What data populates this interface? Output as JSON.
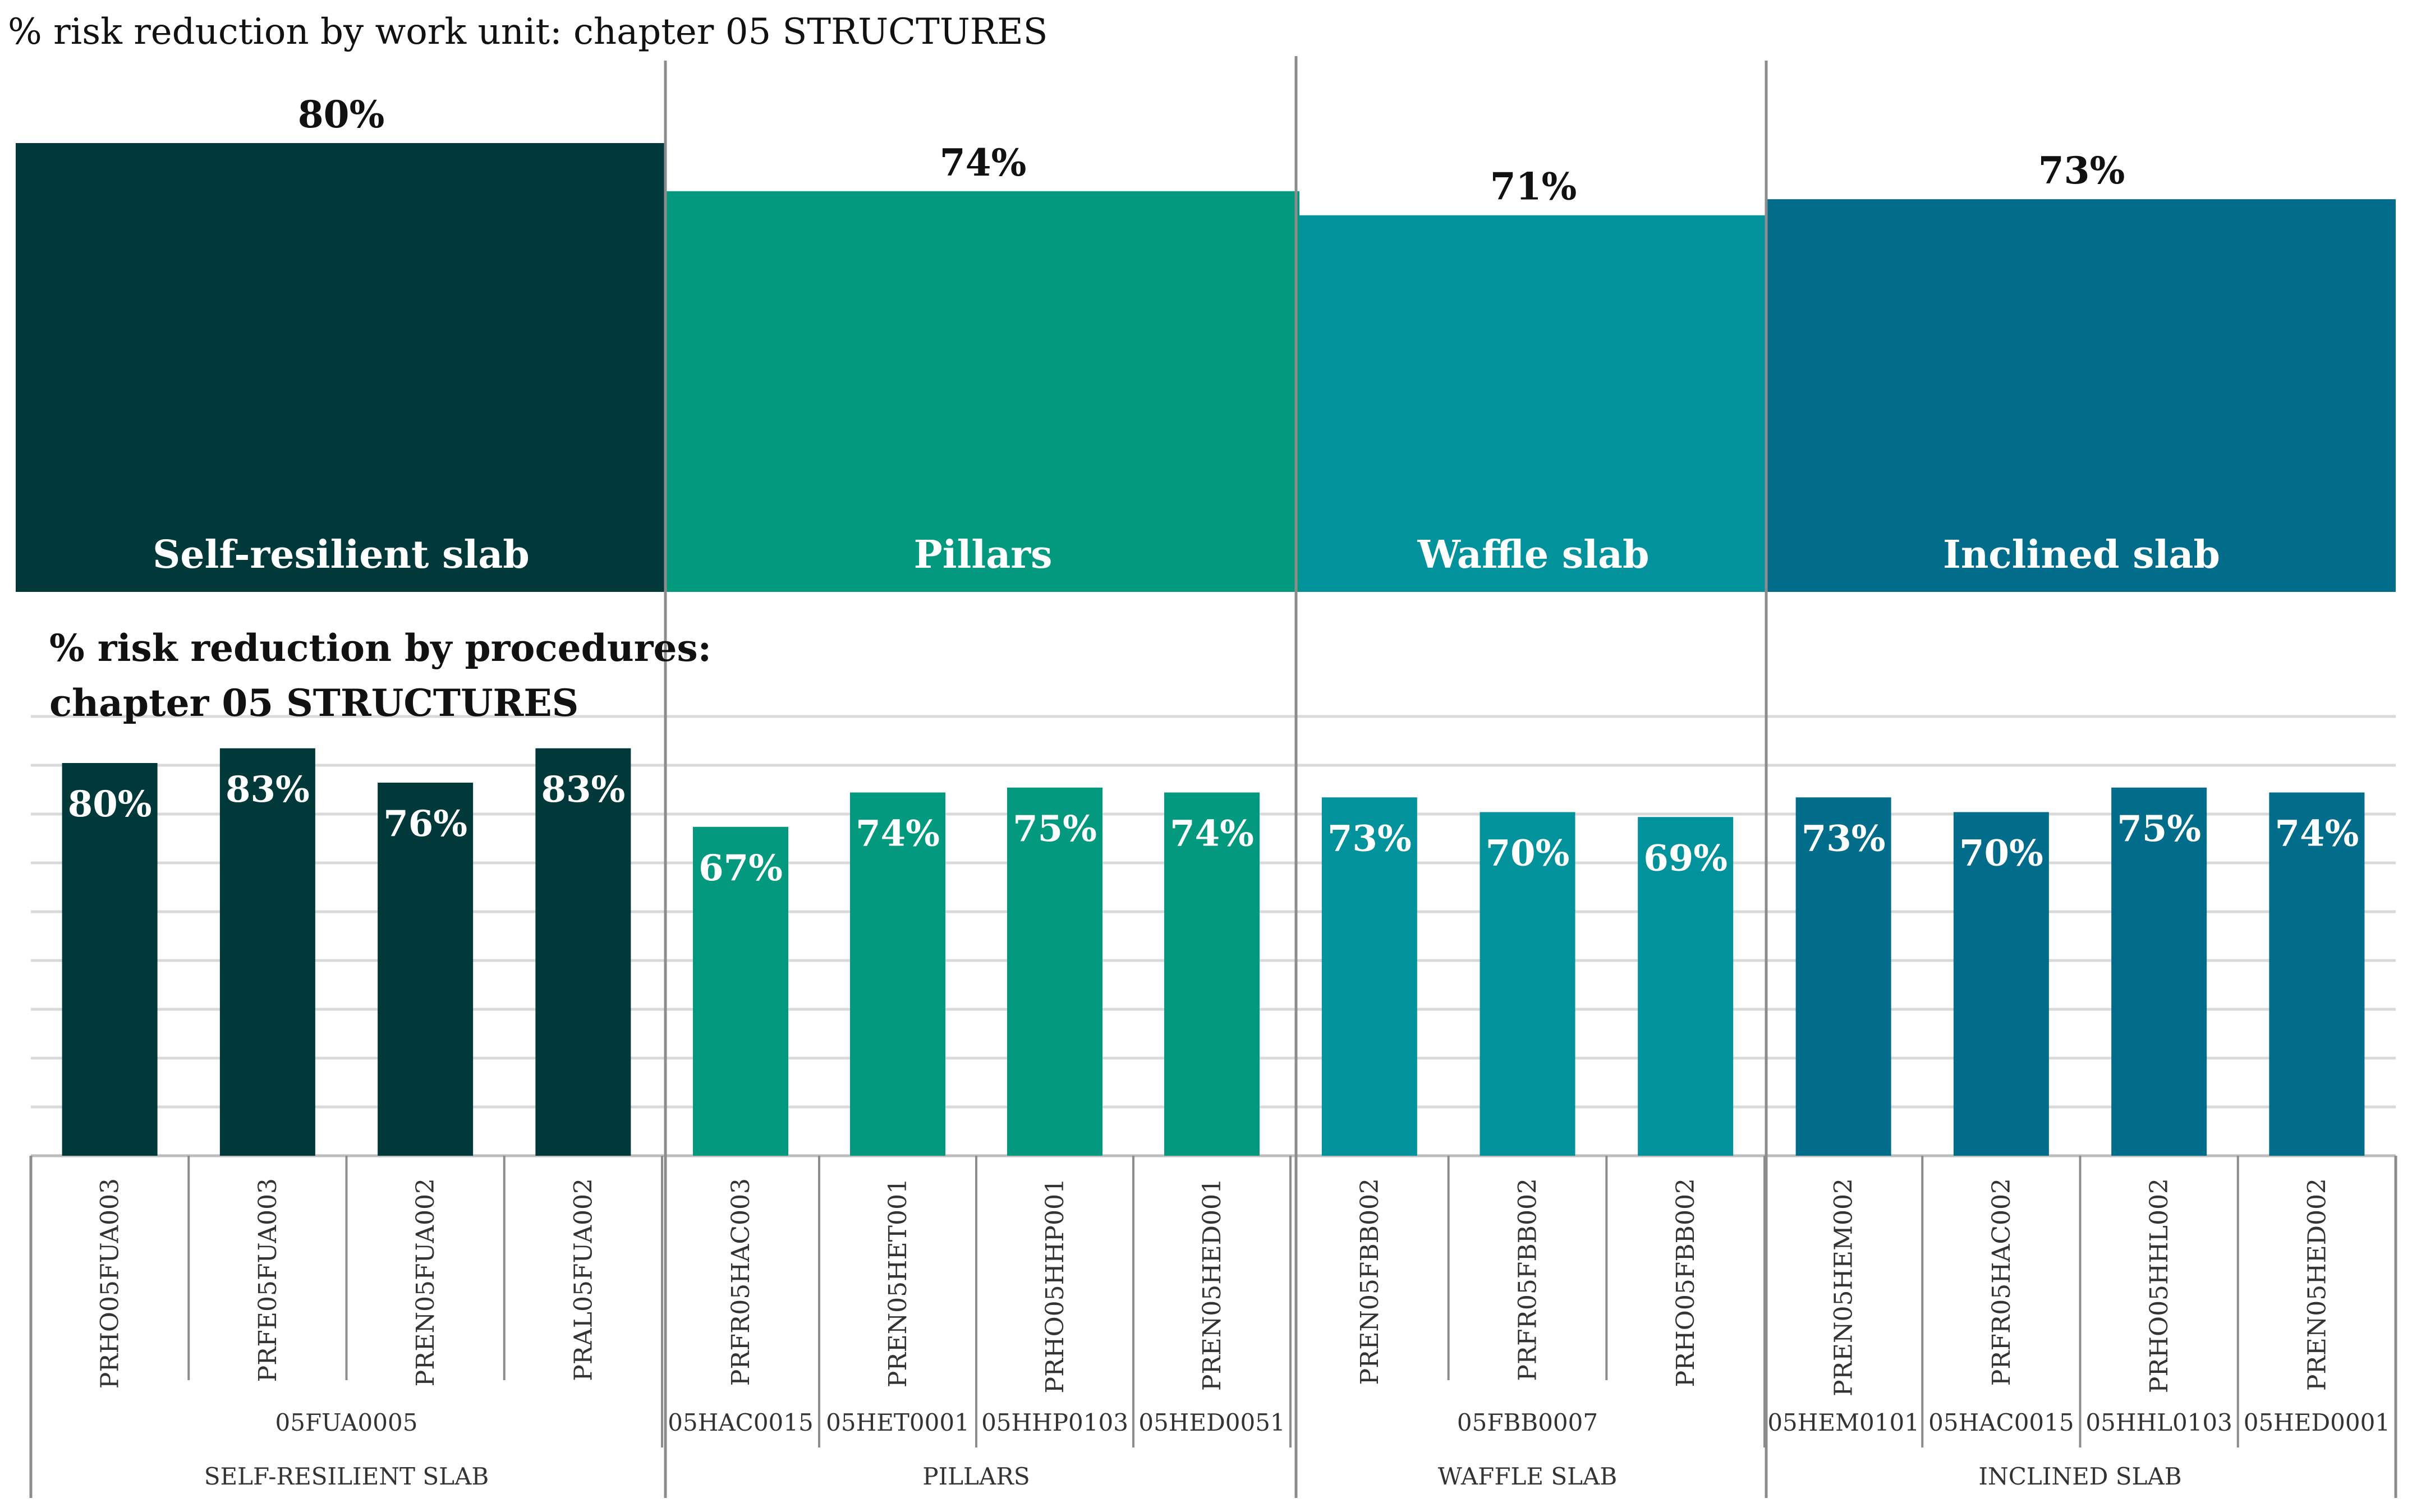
{
  "chart_data": [
    {
      "type": "bar",
      "title": "% risk reduction by work unit: chapter 05 STRUCTURES",
      "categories": [
        "Self-resilient slab",
        "Pillars",
        "Waffle slab",
        "Inclined slab"
      ],
      "values": [
        80,
        74,
        71,
        73
      ],
      "value_labels": [
        "80%",
        "74%",
        "71%",
        "73%"
      ],
      "colors": [
        "#01393b",
        "#03997f",
        "#01929c",
        "#016d8a"
      ]
    },
    {
      "type": "bar",
      "title_line1": "% risk reduction by procedures:",
      "title_line2": "chapter 05 STRUCTURES",
      "ylim": [
        0,
        100
      ],
      "grid": true,
      "procedures": [
        "PRHO05FUA003",
        "PRFE05FUA003",
        "PREN05FUA002",
        "PRAL05FUA002",
        "PRFR05HAC003",
        "PREN05HET001",
        "PRHO05HHP001",
        "PREN05HED001",
        "PREN05FBB002",
        "PRFR05FBB002",
        "PRHO05FBB002",
        "PREN05HEM002",
        "PRFR05HAC002",
        "PRHO05HHL002",
        "PREN05HED002"
      ],
      "values": [
        80,
        83,
        76,
        83,
        67,
        74,
        75,
        74,
        73,
        70,
        69,
        73,
        70,
        75,
        74
      ],
      "value_labels": [
        "80%",
        "83%",
        "76%",
        "83%",
        "67%",
        "74%",
        "75%",
        "74%",
        "73%",
        "70%",
        "69%",
        "73%",
        "70%",
        "75%",
        "74%"
      ],
      "codes": [
        {
          "label": "05FUA0005",
          "span": 4
        },
        {
          "label": "05HAC0015",
          "span": 1
        },
        {
          "label": "05HET0001",
          "span": 1
        },
        {
          "label": "05HHP0103",
          "span": 1
        },
        {
          "label": "05HED0051",
          "span": 1
        },
        {
          "label": "05FBB0007",
          "span": 3
        },
        {
          "label": "05HEM0101",
          "span": 1
        },
        {
          "label": "05HAC0015",
          "span": 1
        },
        {
          "label": "05HHL0103",
          "span": 1
        },
        {
          "label": "05HED0001",
          "span": 1
        }
      ],
      "groups": [
        {
          "label": "SELF-RESILIENT SLAB",
          "span": 4,
          "color": "#01393b"
        },
        {
          "label": "PILLARS",
          "span": 4,
          "color": "#03997f"
        },
        {
          "label": "WAFFLE SLAB",
          "span": 3,
          "color": "#01929c"
        },
        {
          "label": "INCLINED SLAB",
          "span": 4,
          "color": "#016d8a"
        }
      ]
    }
  ]
}
